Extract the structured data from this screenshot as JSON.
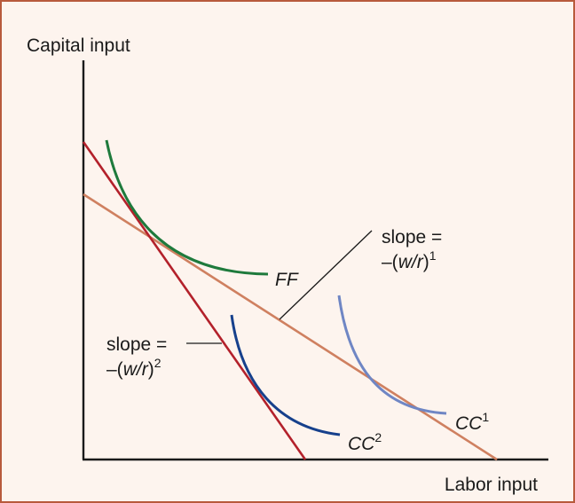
{
  "axes": {
    "y_label": "Capital input",
    "x_label": "Labor input"
  },
  "curves": {
    "ff": {
      "label": "FF"
    },
    "cc1": {
      "label": "CC",
      "sup": "1"
    },
    "cc2": {
      "label": "CC",
      "sup": "2"
    }
  },
  "slope_labels": {
    "one": {
      "line1": "slope =",
      "pre": "–(",
      "ratio": "w/r",
      "post": ")",
      "sup": "1"
    },
    "two": {
      "line1": "slope =",
      "pre": "–(",
      "ratio": "w/r",
      "post": ")",
      "sup": "2"
    }
  },
  "colors": {
    "background": "#fdf4ee",
    "border": "#b85a3c",
    "axis": "#1a1a1a",
    "ff_curve": "#1e7a3c",
    "cc1_curve": "#6f86c4",
    "cc2_curve": "#16408c",
    "steep_isocost": "#b3212b",
    "shallow_isocost": "#cf8060",
    "leader_line": "#1a1a1a"
  }
}
